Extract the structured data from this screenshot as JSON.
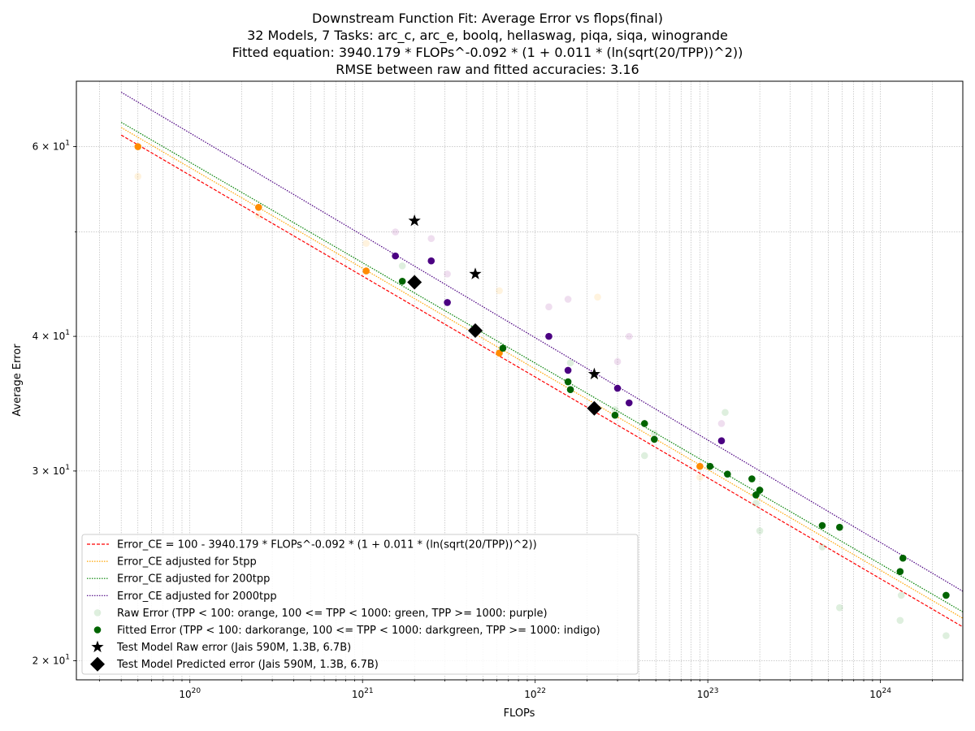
{
  "chart_data": {
    "type": "scatter",
    "title_lines": [
      "Downstream Function Fit: Average Error vs flops(final)",
      "32 Models, 7 Tasks: arc_c, arc_e, boolq, hellaswag, piqa, siqa, winogrande",
      "Fitted equation: 3940.179 * FLOPs^-0.092 * (1 + 0.011 * (ln(sqrt(20/TPP))^2))",
      "RMSE between raw and fitted accuracies: 3.16"
    ],
    "xlabel": "FLOPs",
    "ylabel": "Average Error",
    "x_scale": "log",
    "y_scale": "log",
    "xlim": [
      2.2e+19,
      3e+24
    ],
    "ylim": [
      19.2,
      69
    ],
    "grid": true,
    "legend_position": "lower left",
    "x_ticks": [
      {
        "value": 1e+20,
        "base": "10",
        "exp": "20"
      },
      {
        "value": 1e+21,
        "base": "10",
        "exp": "21"
      },
      {
        "value": 1e+22,
        "base": "10",
        "exp": "22"
      },
      {
        "value": 1e+23,
        "base": "10",
        "exp": "23"
      },
      {
        "value": 1e+24,
        "base": "10",
        "exp": "24"
      }
    ],
    "y_ticks": [
      {
        "value": 20,
        "base": "2 × 10",
        "exp": "1"
      },
      {
        "value": 30,
        "base": "3 × 10",
        "exp": "1"
      },
      {
        "value": 40,
        "base": "4 × 10",
        "exp": "1"
      },
      {
        "value": 60,
        "base": "6 × 10",
        "exp": "1"
      }
    ],
    "colors": {
      "fit_line": "#ff0000",
      "tpp5_line": "#ffa500",
      "tpp200_line": "#008000",
      "tpp2000_line": "#4b0082",
      "orange": "#ffa500",
      "green": "#008000",
      "purple": "#800080",
      "darkorange": "#ff8c00",
      "darkgreen": "#006400",
      "indigo": "#4b0082",
      "test": "#000000"
    },
    "lines": [
      {
        "name": "Error_CE = 100 - 3940.179 * FLOPs^-0.092 * (1 + 0.011 * (ln(sqrt(20/TPP))^2))",
        "style": "dashed",
        "color": "#ff0000",
        "x_range": [
          4e+19,
          3e+24
        ],
        "y_range": [
          61.5,
          21.5
        ]
      },
      {
        "name": "Error_CE adjusted for 5tpp",
        "style": "dotted",
        "color": "#ffa500",
        "x_range": [
          4e+19,
          3e+24
        ],
        "y_range": [
          62.5,
          21.9
        ]
      },
      {
        "name": "Error_CE adjusted for 200tpp",
        "style": "dotted",
        "color": "#008000",
        "x_range": [
          4e+19,
          3e+24
        ],
        "y_range": [
          63.2,
          22.2
        ]
      },
      {
        "name": "Error_CE adjusted for 2000tpp",
        "style": "dotted",
        "color": "#4b0082",
        "x_range": [
          4e+19,
          3e+24
        ],
        "y_range": [
          67.4,
          23.2
        ]
      }
    ],
    "raw_error": {
      "name": "Raw Error (TPP < 100: orange, 100 <= TPP < 1000: green, TPP >= 1000: purple)",
      "points": [
        {
          "x": 5e+19,
          "y": 56.3,
          "group": "orange"
        },
        {
          "x": 2.5e+20,
          "y": 51.8,
          "group": "orange"
        },
        {
          "x": 1.05e+21,
          "y": 48.8,
          "group": "orange"
        },
        {
          "x": 6.2e+21,
          "y": 44.1,
          "group": "orange"
        },
        {
          "x": 2.3e+22,
          "y": 43.5,
          "group": "orange"
        },
        {
          "x": 9e+22,
          "y": 29.6,
          "group": "orange"
        },
        {
          "x": 1.7e+21,
          "y": 46.5,
          "group": "green"
        },
        {
          "x": 1.6e+22,
          "y": 37.8,
          "group": "green"
        },
        {
          "x": 2.9e+22,
          "y": 34.2,
          "group": "green"
        },
        {
          "x": 4.3e+22,
          "y": 31.0,
          "group": "green"
        },
        {
          "x": 4.9e+22,
          "y": 32.5,
          "group": "green"
        },
        {
          "x": 1.26e+23,
          "y": 34.0,
          "group": "green"
        },
        {
          "x": 1.9e+23,
          "y": 28.0,
          "group": "green"
        },
        {
          "x": 2e+23,
          "y": 26.4,
          "group": "green"
        },
        {
          "x": 4.6e+23,
          "y": 25.5,
          "group": "green"
        },
        {
          "x": 5.8e+23,
          "y": 22.4,
          "group": "green"
        },
        {
          "x": 1.3e+24,
          "y": 21.8,
          "group": "green"
        },
        {
          "x": 1.32e+24,
          "y": 23.0,
          "group": "green"
        },
        {
          "x": 2.4e+24,
          "y": 21.1,
          "group": "green"
        },
        {
          "x": 1.55e+21,
          "y": 50.0,
          "group": "purple"
        },
        {
          "x": 2.5e+21,
          "y": 49.3,
          "group": "purple"
        },
        {
          "x": 3.1e+21,
          "y": 45.7,
          "group": "purple"
        },
        {
          "x": 1.2e+22,
          "y": 42.6,
          "group": "purple"
        },
        {
          "x": 1.55e+22,
          "y": 43.3,
          "group": "purple"
        },
        {
          "x": 3e+22,
          "y": 37.9,
          "group": "purple"
        },
        {
          "x": 3.5e+22,
          "y": 40.0,
          "group": "purple"
        },
        {
          "x": 1.2e+23,
          "y": 33.2,
          "group": "purple"
        }
      ]
    },
    "fitted_error": {
      "name": "Fitted Error (TPP < 100: darkorange, 100 <= TPP < 1000: darkgreen, TPP >= 1000: indigo)",
      "points": [
        {
          "x": 5e+19,
          "y": 60.0,
          "group": "darkorange"
        },
        {
          "x": 2.5e+20,
          "y": 52.7,
          "group": "darkorange"
        },
        {
          "x": 1.05e+21,
          "y": 46.0,
          "group": "darkorange"
        },
        {
          "x": 6.2e+21,
          "y": 38.6,
          "group": "darkorange"
        },
        {
          "x": 9e+22,
          "y": 30.3,
          "group": "darkorange"
        },
        {
          "x": 1.7e+21,
          "y": 45.0,
          "group": "darkgreen"
        },
        {
          "x": 6.5e+21,
          "y": 39.0,
          "group": "darkgreen"
        },
        {
          "x": 1.55e+22,
          "y": 36.3,
          "group": "darkgreen"
        },
        {
          "x": 1.6e+22,
          "y": 35.7,
          "group": "darkgreen"
        },
        {
          "x": 2.9e+22,
          "y": 33.8,
          "group": "darkgreen"
        },
        {
          "x": 4.3e+22,
          "y": 33.2,
          "group": "darkgreen"
        },
        {
          "x": 4.9e+22,
          "y": 32.1,
          "group": "darkgreen"
        },
        {
          "x": 1.03e+23,
          "y": 30.3,
          "group": "darkgreen"
        },
        {
          "x": 1.3e+23,
          "y": 29.8,
          "group": "darkgreen"
        },
        {
          "x": 1.8e+23,
          "y": 29.5,
          "group": "darkgreen"
        },
        {
          "x": 1.9e+23,
          "y": 28.5,
          "group": "darkgreen"
        },
        {
          "x": 2e+23,
          "y": 28.8,
          "group": "darkgreen"
        },
        {
          "x": 4.6e+23,
          "y": 26.7,
          "group": "darkgreen"
        },
        {
          "x": 5.8e+23,
          "y": 26.6,
          "group": "darkgreen"
        },
        {
          "x": 1.3e+24,
          "y": 24.2,
          "group": "darkgreen"
        },
        {
          "x": 1.35e+24,
          "y": 24.9,
          "group": "darkgreen"
        },
        {
          "x": 2.4e+24,
          "y": 23.0,
          "group": "darkgreen"
        },
        {
          "x": 1.55e+21,
          "y": 47.5,
          "group": "indigo"
        },
        {
          "x": 2.5e+21,
          "y": 47.0,
          "group": "indigo"
        },
        {
          "x": 3.1e+21,
          "y": 43.0,
          "group": "indigo"
        },
        {
          "x": 1.2e+22,
          "y": 40.0,
          "group": "indigo"
        },
        {
          "x": 1.55e+22,
          "y": 37.2,
          "group": "indigo"
        },
        {
          "x": 3e+22,
          "y": 35.8,
          "group": "indigo"
        },
        {
          "x": 3.5e+22,
          "y": 34.7,
          "group": "indigo"
        },
        {
          "x": 1.2e+23,
          "y": 32.0,
          "group": "indigo"
        }
      ]
    },
    "test_raw": {
      "name": "Test Model Raw error (Jais 590M, 1.3B, 6.7B)",
      "points": [
        {
          "x": 2e+21,
          "y": 51.2
        },
        {
          "x": 4.5e+21,
          "y": 45.7
        },
        {
          "x": 2.2e+22,
          "y": 36.9
        }
      ]
    },
    "test_pred": {
      "name": "Test Model Predicted error (Jais 590M, 1.3B, 6.7B)",
      "points": [
        {
          "x": 2e+21,
          "y": 44.9
        },
        {
          "x": 4.5e+21,
          "y": 40.5
        },
        {
          "x": 2.2e+22,
          "y": 34.3
        }
      ]
    }
  }
}
